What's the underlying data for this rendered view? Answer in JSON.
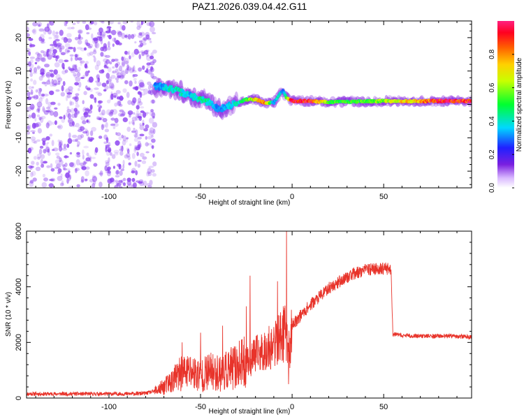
{
  "title": "PAZ1.2026.039.04.42.G11",
  "chart_data": [
    {
      "type": "heatmap",
      "xlabel": "Height of straight line (km)",
      "ylabel": "Frequency (Hz)",
      "xlim": [
        -145,
        98
      ],
      "ylim": [
        -25,
        25
      ],
      "xticks": [
        -100,
        -50,
        0,
        50
      ],
      "xtick_labels": [
        "-100",
        "-50",
        "0",
        "50"
      ],
      "yticks": [
        -20,
        -10,
        0,
        10,
        20
      ],
      "ytick_labels": [
        "-20",
        "-10",
        "0",
        "10",
        "20"
      ],
      "colorbar": {
        "label": "Normalized spectral amplitude",
        "range": [
          0,
          1
        ],
        "ticks": [
          0.0,
          0.2,
          0.4,
          0.6,
          0.8
        ],
        "tick_labels": [
          "0.0",
          "0.2",
          "0.4",
          "0.6",
          "0.8"
        ]
      },
      "noise_region_x": [
        -145,
        -75
      ],
      "ridge": {
        "x": [
          -75,
          -70,
          -65,
          -60,
          -55,
          -50,
          -45,
          -40,
          -35,
          -30,
          -25,
          -20,
          -15,
          -10,
          -7,
          -5,
          -3,
          0,
          10,
          20,
          30,
          40,
          50,
          60,
          70,
          80,
          98
        ],
        "freq": [
          5.5,
          5.2,
          4.5,
          3.5,
          2.5,
          1.5,
          0.5,
          -1.5,
          -0.5,
          0.5,
          1.5,
          1.5,
          0.5,
          0.5,
          3.0,
          4.0,
          2.0,
          1.0,
          1.0,
          0.7,
          0.8,
          0.9,
          1.0,
          0.9,
          1.0,
          1.0,
          1.0
        ],
        "amplitude": [
          0.3,
          0.35,
          0.4,
          0.4,
          0.35,
          0.45,
          0.4,
          0.3,
          0.35,
          0.4,
          0.5,
          0.7,
          0.85,
          0.3,
          0.4,
          0.3,
          0.5,
          0.95,
          0.95,
          0.55,
          0.5,
          0.55,
          0.6,
          0.7,
          0.75,
          0.95,
          0.9
        ]
      }
    },
    {
      "type": "line",
      "xlabel": "Height of straight line (km)",
      "ylabel": "SNR (10 * v/v)",
      "xlim": [
        -145,
        98
      ],
      "ylim": [
        0,
        6000
      ],
      "xticks": [
        -100,
        -50,
        0,
        50
      ],
      "xtick_labels": [
        "-100",
        "-50",
        "0",
        "50"
      ],
      "yticks": [
        0,
        2000,
        4000,
        6000
      ],
      "ytick_labels": [
        "0",
        "2000",
        "4000",
        "6000"
      ],
      "series": [
        {
          "name": "SNR",
          "x": [
            -145,
            -120,
            -100,
            -90,
            -80,
            -75,
            -70,
            -65,
            -60,
            -55,
            -50,
            -45,
            -40,
            -35,
            -30,
            -25,
            -20,
            -15,
            -10,
            -5,
            -3,
            -2,
            -1,
            0,
            5,
            10,
            15,
            20,
            25,
            30,
            35,
            40,
            45,
            50,
            54,
            55,
            60,
            70,
            80,
            90,
            98
          ],
          "y": [
            150,
            150,
            150,
            150,
            170,
            250,
            400,
            650,
            900,
            950,
            800,
            950,
            900,
            1000,
            1150,
            1300,
            1550,
            1700,
            1900,
            2300,
            2400,
            1700,
            1600,
            2600,
            3000,
            3350,
            3650,
            3950,
            4150,
            4350,
            4500,
            4600,
            4650,
            4650,
            4650,
            2300,
            2250,
            2230,
            2230,
            2220,
            2200
          ]
        }
      ],
      "spikes": {
        "x": [
          -60,
          -50,
          -38,
          -25,
          -23,
          -8,
          -3,
          -2
        ],
        "y": [
          2000,
          2350,
          2600,
          3300,
          4400,
          4200,
          6000,
          500
        ]
      }
    }
  ],
  "colors": {
    "snr_line": "#e8332a",
    "ridge_low": "#8a2be2",
    "noise": "#8a3ff0"
  }
}
